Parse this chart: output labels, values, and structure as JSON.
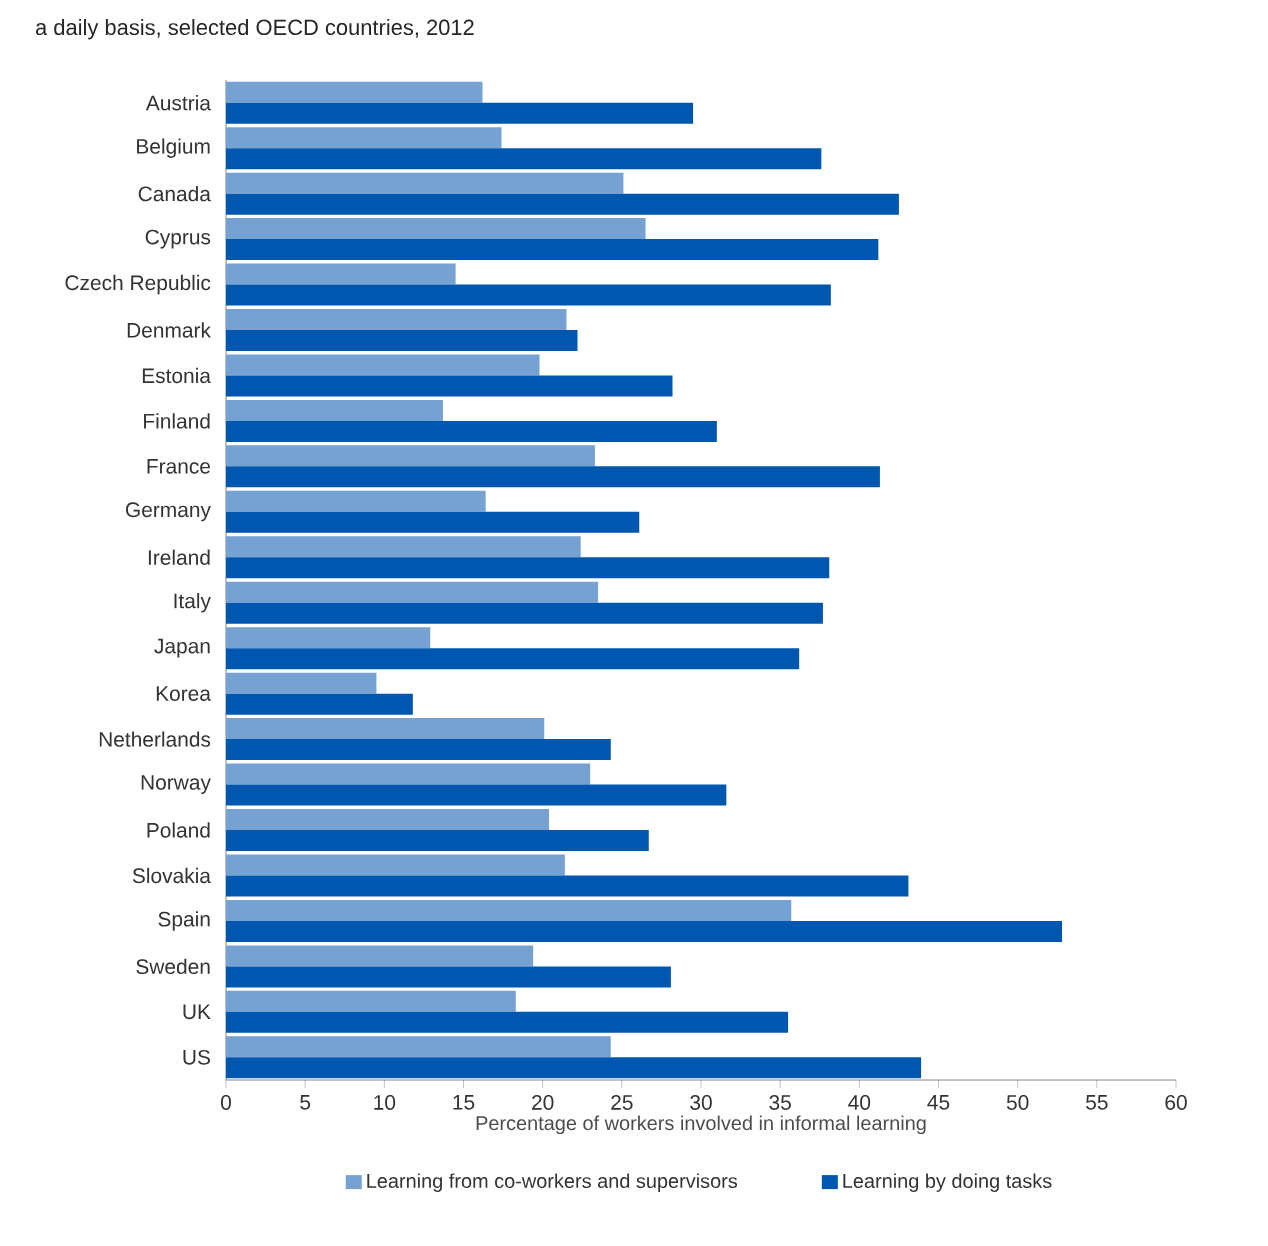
{
  "chart_data": {
    "type": "bar",
    "orientation": "horizontal",
    "title": "a daily basis, selected OECD countries, 2012",
    "xlabel": "Percentage of workers involved in informal learning",
    "categories": [
      "Austria",
      "Belgium",
      "Canada",
      "Cyprus",
      "Czech Republic",
      "Denmark",
      "Estonia",
      "Finland",
      "France",
      "Germany",
      "Ireland",
      "Italy",
      "Japan",
      "Korea",
      "Netherlands",
      "Norway",
      "Poland",
      "Slovakia",
      "Spain",
      "Sweden",
      "UK",
      "US"
    ],
    "series": [
      {
        "name": "Learning from co-workers and supervisors",
        "color": "#75a1d3",
        "values": [
          16.2,
          17.4,
          25.1,
          26.5,
          14.5,
          21.5,
          19.8,
          13.7,
          23.3,
          16.4,
          22.4,
          23.5,
          12.9,
          9.5,
          20.1,
          23.0,
          20.4,
          21.4,
          35.7,
          19.4,
          18.3,
          24.3
        ]
      },
      {
        "name": "Learning by doing tasks",
        "color": "#0057b0",
        "values": [
          29.5,
          37.6,
          42.5,
          41.2,
          38.2,
          22.2,
          28.2,
          31.0,
          41.3,
          26.1,
          38.1,
          37.7,
          36.2,
          11.8,
          24.3,
          31.6,
          26.7,
          43.1,
          52.8,
          28.1,
          35.5,
          43.9
        ]
      }
    ],
    "xlim": [
      0,
      60
    ],
    "xticks": [
      0,
      5,
      10,
      15,
      20,
      25,
      30,
      35,
      40,
      45,
      50,
      55,
      60
    ],
    "grid": false,
    "legend": "bottom"
  }
}
